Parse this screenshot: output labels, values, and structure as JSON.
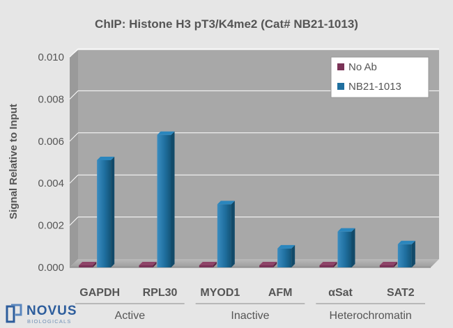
{
  "chart_data": {
    "type": "bar",
    "title": "ChIP: Histone H3 pT3/K4me2 (Cat# NB21-1013)",
    "xlabel": "",
    "ylabel": "Signal Relative to Input",
    "ylim": [
      0,
      0.01
    ],
    "yticks": [
      "0.000",
      "0.002",
      "0.004",
      "0.006",
      "0.008",
      "0.010"
    ],
    "categories": [
      "GAPDH",
      "RPL30",
      "MYOD1",
      "AFM",
      "αSat",
      "SAT2"
    ],
    "groups": [
      {
        "label": "Active",
        "members": [
          "GAPDH",
          "RPL30"
        ]
      },
      {
        "label": "Inactive",
        "members": [
          "MYOD1",
          "AFM"
        ]
      },
      {
        "label": "Heterochromatin",
        "members": [
          "αSat",
          "SAT2"
        ]
      }
    ],
    "series": [
      {
        "name": "No Ab",
        "values": [
          0.0001,
          0.0001,
          0.0001,
          0.0001,
          0.0001,
          0.0001
        ],
        "color": "#7a3357"
      },
      {
        "name": "NB21-1013",
        "values": [
          0.0051,
          0.0063,
          0.003,
          0.0009,
          0.0017,
          0.0011
        ],
        "color": "#1f6f9f"
      }
    ],
    "legend": "top-right",
    "grid": true
  },
  "branding": {
    "logo_text": "NOVUS",
    "logo_subtext": "BIOLOGICALS",
    "logo_color": "#2d5d9c"
  }
}
